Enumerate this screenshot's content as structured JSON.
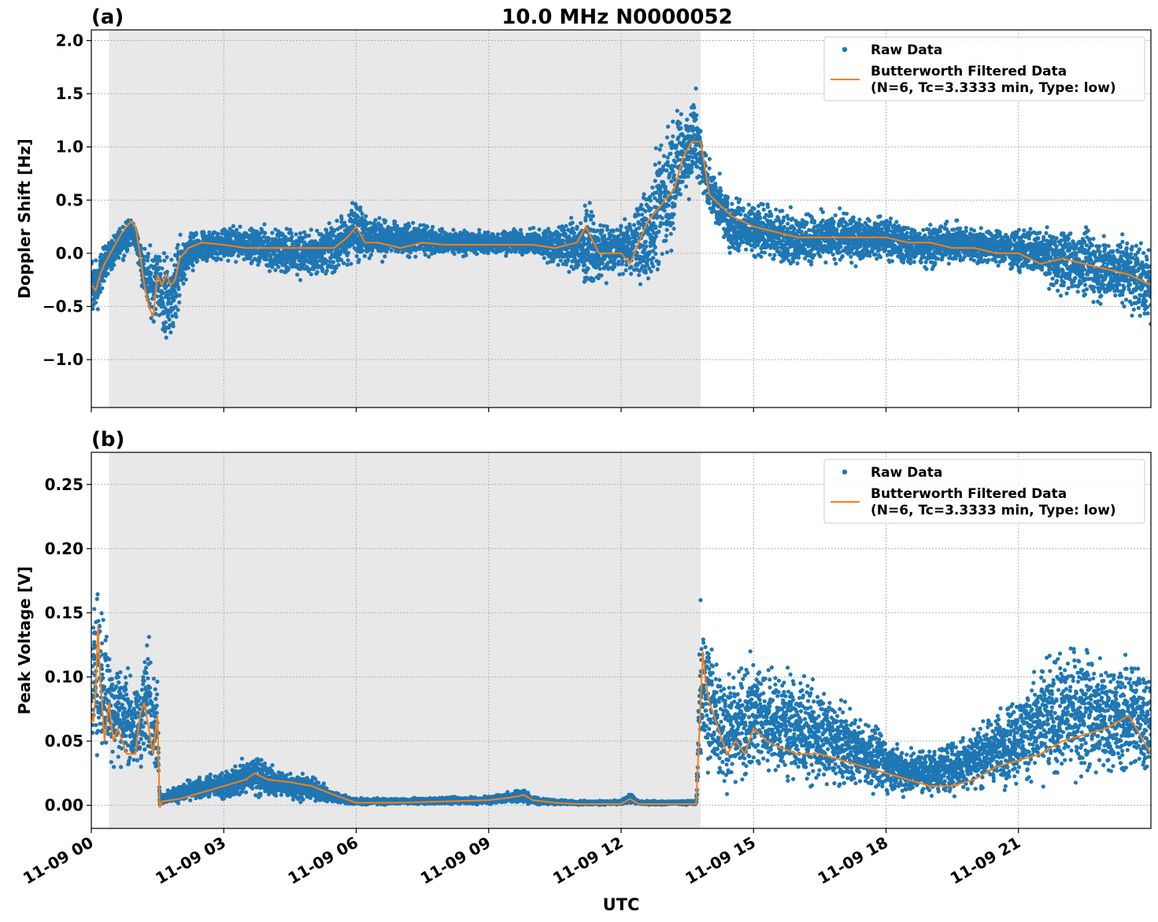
{
  "figure": {
    "title": "10.0 MHz N0000052",
    "xlabel": "UTC",
    "colors": {
      "raw": "#1f77b4",
      "filtered": "#ff7f0e",
      "shade": "#e8e8e8",
      "grid": "#b0b0b0"
    }
  },
  "chart_data": [
    {
      "type": "scatter",
      "panel_label": "(a)",
      "ylabel": "Doppler Shift [Hz]",
      "xlim_hours": [
        0,
        24
      ],
      "ylim": [
        -1.45,
        2.1
      ],
      "yticks": [
        2.0,
        1.5,
        1.0,
        0.5,
        0.0,
        -0.5,
        -1.0
      ],
      "ytick_labels": [
        "2.0",
        "1.5",
        "1.0",
        "0.5",
        "0.0",
        "−0.5",
        "−1.0"
      ],
      "xticks_hours": [
        0,
        3,
        6,
        9,
        12,
        15,
        18,
        21
      ],
      "shaded_region_hours": [
        0.4,
        13.8
      ],
      "grid": true,
      "legend_placement": "top-right",
      "legend": [
        "Raw Data",
        "Butterworth Filtered Data",
        "(N=6, Tc=3.3333 min, Type: low)"
      ],
      "series": [
        {
          "name": "Raw Data",
          "kind": "scatter-envelope",
          "x_hours": [
            0.0,
            0.15,
            0.3,
            0.5,
            0.7,
            0.9,
            1.0,
            1.1,
            1.2,
            1.3,
            1.4,
            1.5,
            1.6,
            1.7,
            1.8,
            1.9,
            2.0,
            2.2,
            2.5,
            3.0,
            3.5,
            4.0,
            4.5,
            5.0,
            5.5,
            5.8,
            6.0,
            6.2,
            6.5,
            7.0,
            7.5,
            8.0,
            9.0,
            10.0,
            10.5,
            11.0,
            11.2,
            11.5,
            12.0,
            12.3,
            12.5,
            12.7,
            12.9,
            13.1,
            13.3,
            13.5,
            13.7,
            13.8,
            14.0,
            14.5,
            15.0,
            15.5,
            16.0,
            16.5,
            17.0,
            17.5,
            18.0,
            18.5,
            19.0,
            19.5,
            20.0,
            20.5,
            21.0,
            21.5,
            22.0,
            22.5,
            23.0,
            23.5,
            24.0
          ],
          "y_high": [
            0.05,
            0.0,
            0.15,
            0.2,
            0.35,
            0.4,
            0.3,
            0.2,
            0.1,
            0.15,
            0.18,
            0.2,
            0.15,
            0.1,
            0.12,
            0.18,
            0.22,
            0.25,
            0.25,
            0.28,
            0.28,
            0.3,
            0.3,
            0.3,
            0.35,
            0.45,
            0.65,
            0.45,
            0.4,
            0.35,
            0.3,
            0.25,
            0.25,
            0.25,
            0.3,
            0.45,
            0.6,
            0.35,
            0.3,
            0.5,
            0.7,
            1.0,
            1.2,
            1.45,
            1.55,
            1.6,
            1.65,
            1.3,
            0.9,
            0.6,
            0.55,
            0.5,
            0.45,
            0.45,
            0.45,
            0.4,
            0.4,
            0.35,
            0.35,
            0.35,
            0.3,
            0.3,
            0.3,
            0.3,
            0.3,
            0.3,
            0.25,
            0.25,
            0.15
          ],
          "y_low": [
            -0.7,
            -0.6,
            -0.3,
            -0.2,
            -0.1,
            0.0,
            0.0,
            -0.2,
            -0.5,
            -0.7,
            -0.8,
            -0.6,
            -0.9,
            -1.0,
            -0.9,
            -0.8,
            -0.5,
            -0.3,
            -0.15,
            -0.1,
            -0.1,
            -0.2,
            -0.3,
            -0.3,
            -0.25,
            -0.2,
            -0.15,
            -0.1,
            -0.1,
            -0.1,
            -0.05,
            -0.05,
            -0.05,
            -0.05,
            -0.15,
            -0.3,
            -0.45,
            -0.35,
            -0.2,
            -0.3,
            -0.45,
            -0.4,
            -0.3,
            -0.2,
            0.2,
            0.4,
            0.5,
            0.5,
            0.3,
            -0.1,
            -0.1,
            -0.15,
            -0.2,
            -0.2,
            -0.15,
            -0.15,
            -0.1,
            -0.2,
            -0.2,
            -0.15,
            -0.15,
            -0.15,
            -0.25,
            -0.3,
            -0.45,
            -0.5,
            -0.55,
            -0.6,
            -0.8
          ]
        },
        {
          "name": "Butterworth Filtered Data",
          "kind": "line",
          "x_hours": [
            0.0,
            0.1,
            0.2,
            0.3,
            0.5,
            0.7,
            0.9,
            1.0,
            1.1,
            1.2,
            1.3,
            1.4,
            1.5,
            1.6,
            1.7,
            1.8,
            1.9,
            2.0,
            2.2,
            2.5,
            3.0,
            3.5,
            4.0,
            4.5,
            5.0,
            5.5,
            5.8,
            6.0,
            6.2,
            6.5,
            7.0,
            7.5,
            8.0,
            9.0,
            10.0,
            10.5,
            11.0,
            11.2,
            11.5,
            12.0,
            12.2,
            12.4,
            12.6,
            12.8,
            13.0,
            13.2,
            13.4,
            13.6,
            13.8,
            14.0,
            14.5,
            15.0,
            15.5,
            16.0,
            16.5,
            17.0,
            17.5,
            18.0,
            18.5,
            19.0,
            19.5,
            20.0,
            20.5,
            21.0,
            21.5,
            22.0,
            22.5,
            23.0,
            23.5,
            24.0
          ],
          "y": [
            -0.3,
            -0.35,
            -0.2,
            -0.1,
            0.05,
            0.2,
            0.3,
            0.25,
            0.0,
            -0.3,
            -0.5,
            -0.6,
            -0.2,
            -0.3,
            -0.2,
            -0.3,
            -0.25,
            -0.05,
            0.05,
            0.1,
            0.08,
            0.05,
            0.05,
            0.05,
            0.05,
            0.05,
            0.15,
            0.25,
            0.1,
            0.1,
            0.05,
            0.1,
            0.08,
            0.08,
            0.08,
            0.05,
            0.1,
            0.25,
            0.0,
            0.0,
            -0.1,
            0.1,
            0.3,
            0.4,
            0.5,
            0.6,
            0.9,
            1.05,
            1.05,
            0.55,
            0.35,
            0.25,
            0.2,
            0.15,
            0.15,
            0.15,
            0.15,
            0.15,
            0.1,
            0.1,
            0.05,
            0.05,
            0.0,
            0.0,
            -0.1,
            -0.05,
            -0.1,
            -0.15,
            -0.2,
            -0.3
          ]
        }
      ]
    },
    {
      "type": "scatter",
      "panel_label": "(b)",
      "ylabel": "Peak Voltage [V]",
      "xlim_hours": [
        0,
        24
      ],
      "ylim": [
        -0.018,
        0.275
      ],
      "yticks": [
        0.25,
        0.2,
        0.15,
        0.1,
        0.05,
        0.0
      ],
      "ytick_labels": [
        "0.25",
        "0.20",
        "0.15",
        "0.10",
        "0.05",
        "0.00"
      ],
      "xticks_hours": [
        0,
        3,
        6,
        9,
        12,
        15,
        18,
        21
      ],
      "xtick_labels": [
        "11-09 00",
        "11-09 03",
        "11-09 06",
        "11-09 09",
        "11-09 12",
        "11-09 15",
        "11-09 18",
        "11-09 21"
      ],
      "shaded_region_hours": [
        0.4,
        13.8
      ],
      "grid": true,
      "legend_placement": "top-right",
      "legend": [
        "Raw Data",
        "Butterworth Filtered Data",
        "(N=6, Tc=3.3333 min, Type: low)"
      ],
      "series": [
        {
          "name": "Raw Data",
          "kind": "scatter-envelope",
          "x_hours": [
            0.0,
            0.1,
            0.2,
            0.3,
            0.4,
            0.6,
            0.8,
            1.0,
            1.2,
            1.3,
            1.4,
            1.5,
            1.55,
            1.7,
            2.0,
            2.5,
            3.0,
            3.5,
            3.7,
            4.0,
            4.5,
            5.0,
            5.5,
            6.0,
            7.0,
            8.0,
            9.0,
            9.5,
            9.8,
            10.0,
            10.5,
            11.0,
            12.0,
            12.2,
            12.4,
            13.0,
            13.7,
            13.8,
            13.85,
            14.0,
            14.3,
            14.5,
            15.0,
            15.5,
            16.0,
            16.5,
            17.0,
            17.5,
            18.0,
            18.5,
            19.0,
            19.5,
            20.0,
            20.5,
            21.0,
            21.5,
            22.0,
            22.5,
            23.0,
            23.5,
            24.0
          ],
          "y_high": [
            0.14,
            0.2,
            0.18,
            0.15,
            0.14,
            0.13,
            0.12,
            0.1,
            0.13,
            0.15,
            0.12,
            0.1,
            0.01,
            0.012,
            0.018,
            0.025,
            0.03,
            0.04,
            0.045,
            0.035,
            0.03,
            0.025,
            0.012,
            0.006,
            0.006,
            0.007,
            0.008,
            0.012,
            0.014,
            0.008,
            0.005,
            0.004,
            0.004,
            0.01,
            0.004,
            0.004,
            0.004,
            0.18,
            0.17,
            0.15,
            0.12,
            0.11,
            0.13,
            0.12,
            0.11,
            0.1,
            0.09,
            0.075,
            0.06,
            0.05,
            0.05,
            0.055,
            0.07,
            0.08,
            0.1,
            0.12,
            0.13,
            0.14,
            0.12,
            0.13,
            0.12
          ],
          "y_low": [
            0.02,
            0.03,
            0.02,
            0.02,
            0.02,
            0.015,
            0.02,
            0.015,
            0.02,
            0.02,
            0.02,
            0.015,
            -0.002,
            0.0,
            0.0,
            0.002,
            0.002,
            0.003,
            0.004,
            0.003,
            0.002,
            0.001,
            0.0,
            0.0,
            0.0,
            0.0,
            0.0,
            0.001,
            0.001,
            0.0,
            0.0,
            0.0,
            0.0,
            0.001,
            0.0,
            0.0,
            0.0,
            0.01,
            0.01,
            0.005,
            0.005,
            0.005,
            0.01,
            0.01,
            0.008,
            0.006,
            0.005,
            0.005,
            0.003,
            0.002,
            0.003,
            0.004,
            0.005,
            0.006,
            0.008,
            0.01,
            0.01,
            0.012,
            0.01,
            0.01,
            0.01
          ]
        },
        {
          "name": "Butterworth Filtered Data",
          "kind": "line",
          "x_hours": [
            0.0,
            0.05,
            0.1,
            0.15,
            0.2,
            0.3,
            0.4,
            0.5,
            0.6,
            0.8,
            1.0,
            1.1,
            1.2,
            1.3,
            1.4,
            1.5,
            1.55,
            1.6,
            2.0,
            2.5,
            3.0,
            3.5,
            3.7,
            4.0,
            4.5,
            5.0,
            5.5,
            6.0,
            7.0,
            8.0,
            9.0,
            9.5,
            9.8,
            10.0,
            10.5,
            11.0,
            12.0,
            12.2,
            12.4,
            13.0,
            13.7,
            13.8,
            13.85,
            13.9,
            14.0,
            14.2,
            14.4,
            14.6,
            14.8,
            15.0,
            15.3,
            15.6,
            16.0,
            16.5,
            17.0,
            17.5,
            18.0,
            18.5,
            19.0,
            19.5,
            20.0,
            20.5,
            21.0,
            21.5,
            22.0,
            22.5,
            23.0,
            23.5,
            24.0
          ],
          "y": [
            0.07,
            0.065,
            0.09,
            0.14,
            0.1,
            0.05,
            0.08,
            0.05,
            0.06,
            0.04,
            0.04,
            0.07,
            0.08,
            0.06,
            0.04,
            0.07,
            -0.002,
            0.003,
            0.005,
            0.01,
            0.015,
            0.02,
            0.025,
            0.02,
            0.018,
            0.015,
            0.008,
            0.002,
            0.002,
            0.003,
            0.004,
            0.006,
            0.008,
            0.004,
            0.002,
            0.001,
            0.001,
            0.005,
            0.001,
            0.001,
            0.001,
            0.08,
            0.12,
            0.1,
            0.08,
            0.06,
            0.04,
            0.05,
            0.04,
            0.06,
            0.05,
            0.045,
            0.04,
            0.04,
            0.035,
            0.03,
            0.025,
            0.02,
            0.015,
            0.015,
            0.02,
            0.03,
            0.035,
            0.04,
            0.05,
            0.055,
            0.06,
            0.07,
            0.04
          ]
        }
      ]
    }
  ]
}
